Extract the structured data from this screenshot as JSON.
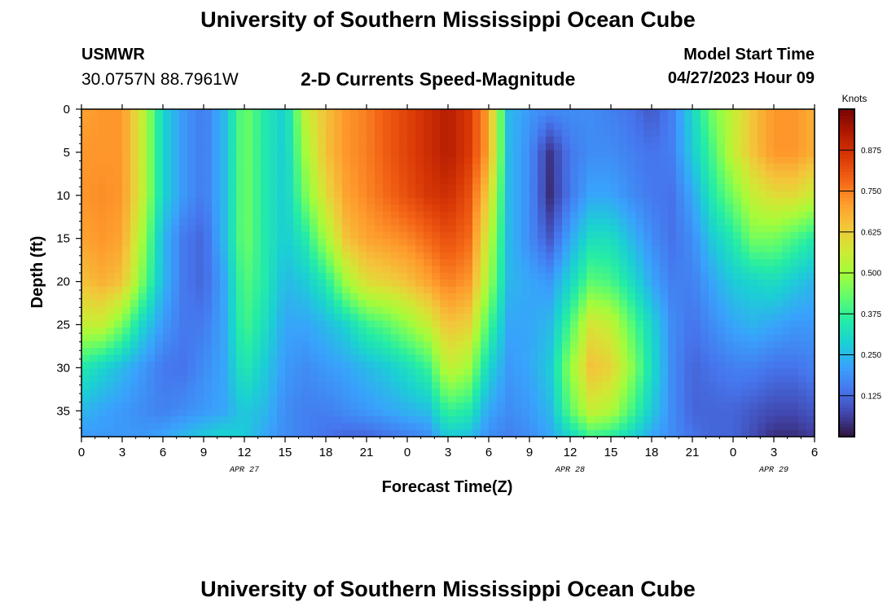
{
  "page": {
    "title": "University of Southern Mississippi Ocean Cube",
    "station": "USMWR",
    "coords": "30.0757N  88.7961W",
    "subtitle": "2-D Currents Speed-Magnitude",
    "model_start_label": "Model Start Time",
    "model_start_value": "04/27/2023 Hour 09",
    "footer_title": "University of Southern Mississippi Ocean Cube"
  },
  "chart_data": {
    "type": "heatmap",
    "xlabel": "Forecast Time(Z)",
    "ylabel": "Depth (ft)",
    "xlim": [
      0,
      54
    ],
    "ylim": [
      38,
      0
    ],
    "x_ticks": [
      0,
      3,
      6,
      9,
      12,
      15,
      18,
      21,
      24,
      27,
      30,
      33,
      36,
      39,
      42,
      45,
      48,
      51,
      54
    ],
    "x_tick_labels": [
      "0",
      "3",
      "6",
      "9",
      "12",
      "15",
      "18",
      "21",
      "0",
      "3",
      "6",
      "9",
      "12",
      "15",
      "18",
      "21",
      "0",
      "3",
      "6"
    ],
    "y_ticks": [
      0,
      5,
      10,
      15,
      20,
      25,
      30,
      35
    ],
    "y_tick_labels": [
      "0",
      "5",
      "10",
      "15",
      "20",
      "25",
      "30",
      "35"
    ],
    "date_labels": [
      {
        "x": 12,
        "text": "APR 27"
      },
      {
        "x": 36,
        "text": "APR 28"
      },
      {
        "x": 51,
        "text": "APR 29"
      }
    ],
    "colorbar": {
      "label": "Knots",
      "range": [
        0,
        1.0
      ],
      "ticks": [
        0.125,
        0.25,
        0.375,
        0.5,
        0.625,
        0.75,
        0.875
      ],
      "tick_labels": [
        "0.125",
        "0.250",
        "0.375",
        "0.500",
        "0.625",
        "0.750",
        "0.875"
      ],
      "colors": [
        "#30123b",
        "#4145ab",
        "#4675ed",
        "#39a2fc",
        "#1bcfd4",
        "#24eca6",
        "#61fc6c",
        "#a4fc3b",
        "#d1e834",
        "#f3c63a",
        "#fe9b2d",
        "#f36315",
        "#d93806",
        "#b11901",
        "#7a0402"
      ]
    },
    "x_grid_hours": [
      0,
      1.5,
      3,
      4.5,
      6,
      7.5,
      9,
      10.5,
      12,
      13.5,
      15,
      16.5,
      18,
      19.5,
      21,
      22.5,
      24,
      25.5,
      27,
      28.5,
      30,
      31.5,
      33,
      34.5,
      36,
      37.5,
      39,
      40.5,
      42,
      43.5,
      45,
      46.5,
      48,
      49.5,
      51,
      52.5,
      54
    ],
    "y_grid_ft": [
      0,
      5,
      10,
      15,
      20,
      25,
      30,
      35,
      38
    ],
    "speed_knots": [
      [
        0.7,
        0.72,
        0.72,
        0.55,
        0.3,
        0.2,
        0.15,
        0.25,
        0.45,
        0.35,
        0.28,
        0.55,
        0.65,
        0.72,
        0.75,
        0.8,
        0.84,
        0.88,
        0.92,
        0.86,
        0.7,
        0.25,
        0.2,
        0.18,
        0.18,
        0.18,
        0.16,
        0.14,
        0.1,
        0.16,
        0.3,
        0.45,
        0.55,
        0.65,
        0.72,
        0.72,
        0.68
      ],
      [
        0.72,
        0.72,
        0.72,
        0.55,
        0.3,
        0.2,
        0.15,
        0.25,
        0.45,
        0.35,
        0.28,
        0.5,
        0.65,
        0.72,
        0.75,
        0.8,
        0.84,
        0.88,
        0.92,
        0.86,
        0.7,
        0.25,
        0.18,
        0.05,
        0.15,
        0.18,
        0.18,
        0.16,
        0.14,
        0.16,
        0.28,
        0.4,
        0.55,
        0.65,
        0.72,
        0.72,
        0.68
      ],
      [
        0.72,
        0.73,
        0.72,
        0.55,
        0.3,
        0.2,
        0.15,
        0.25,
        0.45,
        0.35,
        0.28,
        0.45,
        0.6,
        0.7,
        0.74,
        0.78,
        0.82,
        0.86,
        0.88,
        0.82,
        0.62,
        0.25,
        0.18,
        0.04,
        0.15,
        0.22,
        0.22,
        0.18,
        0.15,
        0.14,
        0.22,
        0.35,
        0.45,
        0.55,
        0.6,
        0.6,
        0.55
      ],
      [
        0.7,
        0.72,
        0.7,
        0.5,
        0.25,
        0.15,
        0.12,
        0.25,
        0.45,
        0.35,
        0.28,
        0.35,
        0.5,
        0.65,
        0.7,
        0.72,
        0.74,
        0.78,
        0.82,
        0.78,
        0.55,
        0.25,
        0.18,
        0.1,
        0.22,
        0.32,
        0.32,
        0.25,
        0.18,
        0.14,
        0.18,
        0.28,
        0.35,
        0.45,
        0.45,
        0.4,
        0.35
      ],
      [
        0.65,
        0.68,
        0.65,
        0.45,
        0.25,
        0.15,
        0.12,
        0.22,
        0.42,
        0.35,
        0.25,
        0.28,
        0.35,
        0.5,
        0.6,
        0.62,
        0.65,
        0.7,
        0.75,
        0.72,
        0.5,
        0.25,
        0.22,
        0.2,
        0.3,
        0.42,
        0.4,
        0.32,
        0.22,
        0.16,
        0.16,
        0.22,
        0.28,
        0.3,
        0.32,
        0.28,
        0.24
      ],
      [
        0.55,
        0.55,
        0.45,
        0.3,
        0.2,
        0.15,
        0.15,
        0.22,
        0.4,
        0.32,
        0.22,
        0.22,
        0.25,
        0.3,
        0.38,
        0.42,
        0.48,
        0.55,
        0.65,
        0.62,
        0.4,
        0.22,
        0.22,
        0.25,
        0.4,
        0.58,
        0.55,
        0.42,
        0.3,
        0.18,
        0.14,
        0.18,
        0.22,
        0.24,
        0.22,
        0.2,
        0.2
      ],
      [
        0.35,
        0.3,
        0.25,
        0.2,
        0.15,
        0.14,
        0.18,
        0.22,
        0.35,
        0.28,
        0.2,
        0.18,
        0.2,
        0.22,
        0.25,
        0.28,
        0.32,
        0.38,
        0.55,
        0.5,
        0.3,
        0.2,
        0.22,
        0.28,
        0.48,
        0.65,
        0.62,
        0.48,
        0.32,
        0.18,
        0.12,
        0.14,
        0.16,
        0.16,
        0.14,
        0.14,
        0.16
      ],
      [
        0.25,
        0.22,
        0.2,
        0.18,
        0.16,
        0.18,
        0.2,
        0.22,
        0.28,
        0.25,
        0.18,
        0.16,
        0.16,
        0.18,
        0.2,
        0.22,
        0.24,
        0.26,
        0.38,
        0.35,
        0.22,
        0.18,
        0.2,
        0.25,
        0.42,
        0.55,
        0.52,
        0.4,
        0.28,
        0.18,
        0.12,
        0.12,
        0.12,
        0.1,
        0.08,
        0.08,
        0.1
      ],
      [
        0.2,
        0.2,
        0.2,
        0.2,
        0.22,
        0.25,
        0.28,
        0.3,
        0.28,
        0.22,
        0.18,
        0.16,
        0.14,
        0.12,
        0.12,
        0.14,
        0.16,
        0.18,
        0.28,
        0.26,
        0.18,
        0.16,
        0.18,
        0.22,
        0.3,
        0.38,
        0.36,
        0.3,
        0.22,
        0.18,
        0.14,
        0.12,
        0.12,
        0.08,
        0.04,
        0.04,
        0.06
      ]
    ]
  }
}
